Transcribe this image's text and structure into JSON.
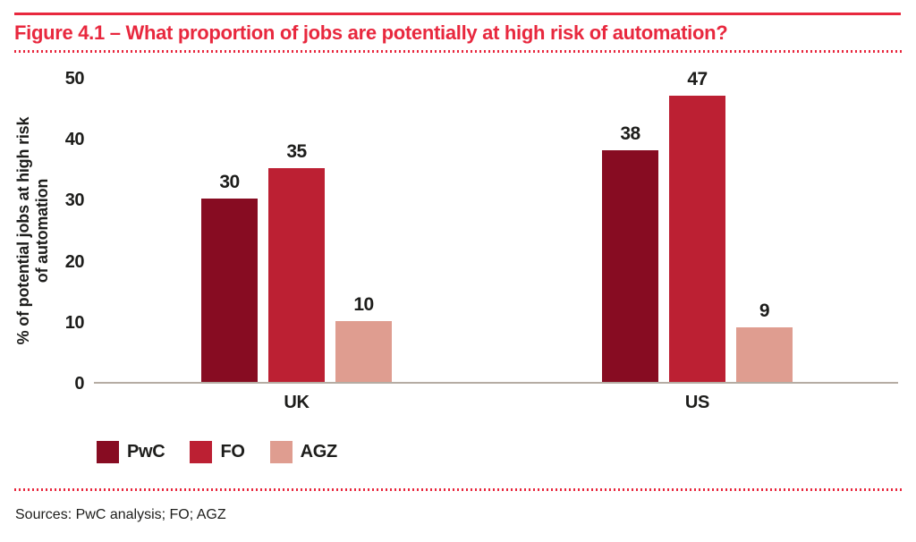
{
  "figure": {
    "title": "Figure 4.1 – What proportion of jobs are potentially at high risk of automation?",
    "sources": "Sources: PwC analysis; FO; AGZ"
  },
  "colors": {
    "accent_red": "#e8283e",
    "axis_line": "#b5aca3",
    "text_dark": "#1d1d1b"
  },
  "chart_data": {
    "type": "bar",
    "title": "Figure 4.1 – What proportion of jobs are potentially at high risk of automation?",
    "categories": [
      "UK",
      "US"
    ],
    "series": [
      {
        "name": "PwC",
        "color": "#870c22",
        "values": [
          30,
          38
        ]
      },
      {
        "name": "FO",
        "color": "#bc2033",
        "values": [
          35,
          47
        ]
      },
      {
        "name": "AGZ",
        "color": "#df9d90",
        "values": [
          10,
          9
        ]
      }
    ],
    "ylabel_lines": [
      "% of potential jobs at high risk",
      "of automation"
    ],
    "xlabel": "",
    "yticks": [
      0,
      10,
      20,
      30,
      40,
      50
    ],
    "ylim": [
      0,
      50
    ],
    "grid": false,
    "legend_position": "bottom-left"
  }
}
